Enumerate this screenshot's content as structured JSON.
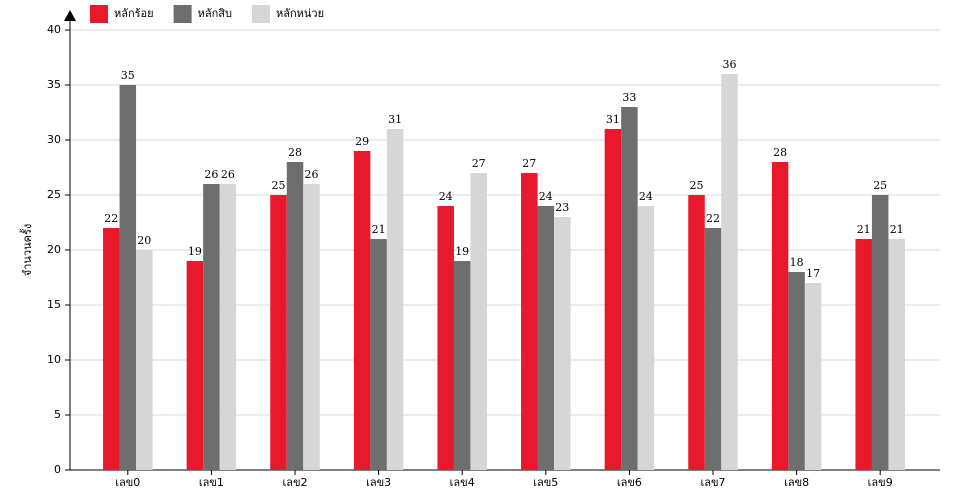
{
  "chart_data": {
    "type": "bar",
    "y_label": "จำนวนครั้ง",
    "categories": [
      "เลข0",
      "เลข1",
      "เลข2",
      "เลข3",
      "เลข4",
      "เลข5",
      "เลข6",
      "เลข7",
      "เลข8",
      "เลข9"
    ],
    "series": [
      {
        "name": "หลักร้อย",
        "color": "#e8192c",
        "values": [
          22,
          19,
          25,
          29,
          24,
          27,
          31,
          25,
          28,
          21
        ]
      },
      {
        "name": "หลักสิบ",
        "color": "#6e6e6e",
        "values": [
          35,
          26,
          28,
          21,
          19,
          24,
          33,
          22,
          18,
          25
        ]
      },
      {
        "name": "หลักหน่วย",
        "color": "#d6d6d6",
        "values": [
          20,
          26,
          26,
          31,
          27,
          23,
          24,
          36,
          17,
          21
        ]
      }
    ],
    "ylim": [
      0,
      40
    ],
    "yticks": [
      0,
      5,
      10,
      15,
      20,
      25,
      30,
      35,
      40
    ],
    "grid": true
  }
}
